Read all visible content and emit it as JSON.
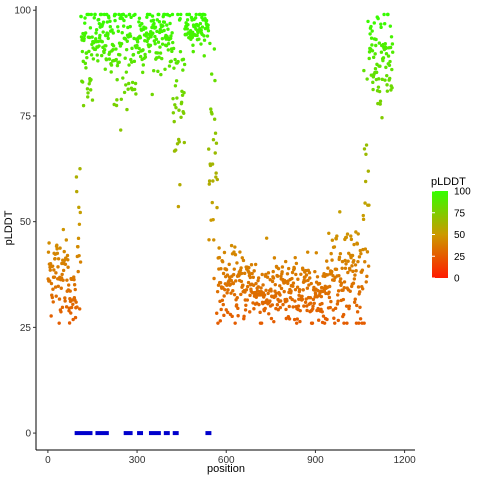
{
  "chart_data": {
    "type": "scatter",
    "xlabel": "position",
    "ylabel": "pLDDT",
    "xlim": [
      -40,
      1235
    ],
    "ylim": [
      -4,
      101
    ],
    "xticks": [
      0,
      300,
      600,
      900,
      1200
    ],
    "yticks": [
      0,
      25,
      50,
      75,
      100
    ],
    "grid": false,
    "legend": {
      "title": "pLDDT",
      "placement": "right",
      "scale": "gradient",
      "range": [
        0,
        100
      ],
      "ticks": [
        0,
        25,
        50,
        75,
        100
      ],
      "colors": {
        "low": "#ff1a00",
        "mid": "#cc9900",
        "high": "#33ff00"
      }
    },
    "point_color": "gradient by pLDDT",
    "marker_color": "#0000cc",
    "segments": [
      {
        "start": 1,
        "end": 70,
        "mean": 38,
        "spread": 5
      },
      {
        "start": 71,
        "end": 95,
        "mean": 32,
        "spread": 3
      },
      {
        "start": 96,
        "end": 110,
        "mean": 50,
        "spread": 10
      },
      {
        "start": 111,
        "end": 150,
        "mean": 88,
        "spread": 7
      },
      {
        "start": 151,
        "end": 220,
        "mean": 93,
        "spread": 4
      },
      {
        "start": 221,
        "end": 300,
        "mean": 90,
        "spread": 8
      },
      {
        "start": 301,
        "end": 420,
        "mean": 94,
        "spread": 4
      },
      {
        "start": 421,
        "end": 460,
        "mean": 78,
        "spread": 12
      },
      {
        "start": 461,
        "end": 540,
        "mean": 96,
        "spread": 2
      },
      {
        "start": 541,
        "end": 570,
        "mean": 68,
        "spread": 18
      },
      {
        "start": 571,
        "end": 700,
        "mean": 35,
        "spread": 4
      },
      {
        "start": 701,
        "end": 940,
        "mean": 33,
        "spread": 4
      },
      {
        "start": 941,
        "end": 1060,
        "mean": 38,
        "spread": 6
      },
      {
        "start": 1061,
        "end": 1080,
        "mean": 50,
        "spread": 15
      },
      {
        "start": 1081,
        "end": 1160,
        "mean": 88,
        "spread": 6
      }
    ],
    "markers": [
      {
        "start": 90,
        "end": 150,
        "y": 0
      },
      {
        "start": 160,
        "end": 205,
        "y": 0
      },
      {
        "start": 255,
        "end": 285,
        "y": 0
      },
      {
        "start": 300,
        "end": 320,
        "y": 0
      },
      {
        "start": 340,
        "end": 380,
        "y": 0
      },
      {
        "start": 390,
        "end": 410,
        "y": 0
      },
      {
        "start": 420,
        "end": 440,
        "y": 0
      },
      {
        "start": 530,
        "end": 550,
        "y": 0
      }
    ]
  }
}
